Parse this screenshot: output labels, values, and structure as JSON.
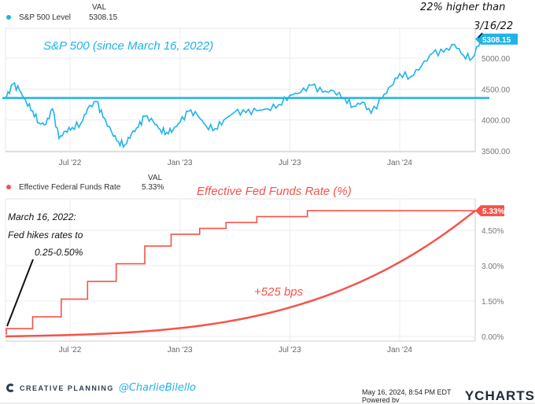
{
  "top_legend": {
    "val_header": "VAL",
    "series_name": "S&P 500 Level",
    "series_value": "5308.15",
    "dot_color": "#1fb3e8"
  },
  "bottom_legend": {
    "val_header": "VAL",
    "series_name": "Effective Federal Funds Rate",
    "series_value": "5.33%",
    "dot_color": "#f5534a"
  },
  "annotations": {
    "sp_title": "S&P 500 (since March 16, 2022)",
    "sp_note_line1": "22% higher than",
    "sp_note_line2": "3/16/22",
    "fed_title": "Effective Fed Funds Rate (%)",
    "fed_note_line1": "March 16, 2022:",
    "fed_note_line2": "Fed hikes rates to",
    "fed_note_line3": "0.25-0.50%",
    "fed_change": "+525 bps"
  },
  "footer": {
    "brand": "CREATIVE PLANNING",
    "handle": "@CharlieBilello",
    "timestamp": "May 16, 2024, 8:54 PM EDT Powered by",
    "ycharts": "YCHARTS"
  },
  "chart_data": [
    {
      "type": "line",
      "title": "S&P 500 (since March 16, 2022)",
      "series": [
        {
          "name": "S&P 500 Level",
          "color": "#1fb3e8",
          "x": [
            2022.21,
            2022.24,
            2022.27,
            2022.3,
            2022.33,
            2022.36,
            2022.39,
            2022.42,
            2022.45,
            2022.48,
            2022.51,
            2022.55,
            2022.58,
            2022.62,
            2022.65,
            2022.69,
            2022.72,
            2022.75,
            2022.78,
            2022.81,
            2022.84,
            2022.88,
            2022.91,
            2022.94,
            2022.97,
            2023.0,
            2023.04,
            2023.08,
            2023.12,
            2023.16,
            2023.2,
            2023.25,
            2023.3,
            2023.35,
            2023.4,
            2023.45,
            2023.5,
            2023.55,
            2023.6,
            2023.65,
            2023.7,
            2023.75,
            2023.79,
            2023.83,
            2023.87,
            2023.92,
            2023.96,
            2024.0,
            2024.05,
            2024.1,
            2024.15,
            2024.2,
            2024.25,
            2024.29,
            2024.33,
            2024.37
          ],
          "y": [
            4360,
            4580,
            4480,
            4300,
            4150,
            3950,
            3930,
            4180,
            3700,
            3820,
            3880,
            3950,
            4180,
            4300,
            4050,
            3800,
            3650,
            3600,
            3780,
            3880,
            4060,
            3970,
            3850,
            3800,
            3850,
            3960,
            4140,
            4080,
            3900,
            3860,
            4000,
            4130,
            4120,
            4150,
            4180,
            4250,
            4400,
            4450,
            4560,
            4450,
            4470,
            4350,
            4220,
            4290,
            4110,
            4350,
            4550,
            4750,
            4700,
            4880,
            5080,
            5100,
            5220,
            5050,
            5000,
            5308
          ]
        }
      ],
      "reference_line": 4357,
      "xlabel": "",
      "ylabel": "",
      "x_ticks": [
        "Jul '22",
        "Jan '23",
        "Jul '23",
        "Jan '24"
      ],
      "y_ticks": [
        "3500.00",
        "4000.00",
        "4500.00",
        "5000.00"
      ],
      "ylim": [
        3500,
        5308
      ],
      "last_value_label": "5308.15",
      "grid": true,
      "legend": "top-left"
    },
    {
      "type": "line",
      "title": "Effective Fed Funds Rate (%)",
      "series": [
        {
          "name": "Effective Federal Funds Rate",
          "color": "#f5534a",
          "step_x": [
            2022.21,
            2022.33,
            2022.46,
            2022.58,
            2022.71,
            2022.84,
            2022.96,
            2023.09,
            2023.21,
            2023.35,
            2023.58,
            2024.37
          ],
          "step_y": [
            0.33,
            0.83,
            1.58,
            2.33,
            3.08,
            3.83,
            4.33,
            4.58,
            4.83,
            5.08,
            5.33,
            5.33
          ]
        }
      ],
      "trend_curve_bps": 525,
      "x_ticks": [
        "Jul '22",
        "Jan '23",
        "Jul '23",
        "Jan '24"
      ],
      "y_ticks": [
        "0.00%",
        "1.50%",
        "3.00%",
        "4.50%"
      ],
      "ylim": [
        0,
        5.33
      ],
      "last_value_label": "5.33%",
      "grid": true,
      "legend": "top-left"
    }
  ]
}
